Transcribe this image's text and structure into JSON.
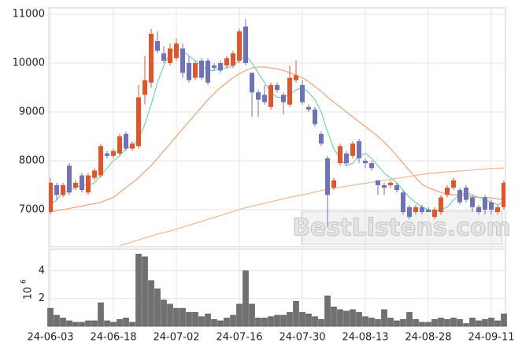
{
  "chart_data": [
    {
      "type": "candlestick",
      "categories": [
        "24-06-03",
        null,
        null,
        null,
        null,
        null,
        null,
        null,
        null,
        null,
        "24-06-18",
        null,
        null,
        null,
        null,
        null,
        null,
        null,
        null,
        null,
        "24-07-02",
        null,
        null,
        null,
        null,
        null,
        null,
        null,
        null,
        null,
        "24-07-16",
        null,
        null,
        null,
        null,
        null,
        null,
        null,
        null,
        null,
        "24-07-30",
        null,
        null,
        null,
        null,
        null,
        null,
        null,
        null,
        null,
        "24-08-13",
        null,
        null,
        null,
        null,
        null,
        null,
        null,
        null,
        null,
        "24-08-28",
        null,
        null,
        null,
        null,
        null,
        null,
        null,
        null,
        null,
        "24-09-11",
        null,
        null
      ],
      "open": [
        6950,
        7500,
        7300,
        7900,
        7450,
        7700,
        7350,
        7650,
        7700,
        8150,
        8100,
        8150,
        8550,
        8250,
        8300,
        9350,
        9600,
        10450,
        10200,
        10000,
        10100,
        10300,
        10000,
        9700,
        10050,
        10050,
        9950,
        10000,
        9950,
        9950,
        10050,
        10750,
        9800,
        9400,
        9350,
        9100,
        9550,
        9350,
        9150,
        9650,
        9550,
        9100,
        9050,
        8550,
        8050,
        7450,
        7950,
        8150,
        8100,
        8400,
        8000,
        7950,
        7600,
        7500,
        7500,
        7500,
        7350,
        7050,
        6950,
        7050,
        7000,
        6850,
        6950,
        7300,
        7450,
        7400,
        7450,
        7250,
        7050,
        7250,
        7150,
        6950,
        7050
      ],
      "high": [
        7650,
        7550,
        7550,
        7950,
        7600,
        7750,
        7750,
        7850,
        8350,
        8200,
        8250,
        8550,
        8600,
        8400,
        9550,
        10150,
        10700,
        10650,
        10350,
        10400,
        10500,
        10400,
        10150,
        10050,
        10100,
        10100,
        10000,
        10050,
        10150,
        10250,
        10700,
        10900,
        9800,
        9450,
        9550,
        9600,
        9600,
        9400,
        9950,
        10050,
        9650,
        9150,
        9100,
        8600,
        8100,
        7650,
        8350,
        8200,
        8400,
        8450,
        8050,
        8000,
        7600,
        7550,
        7600,
        7550,
        7400,
        7100,
        7100,
        7100,
        7050,
        7050,
        7300,
        7500,
        7650,
        7450,
        7500,
        7300,
        7100,
        7300,
        7200,
        7100,
        7600
      ],
      "low": [
        6900,
        7200,
        7250,
        7300,
        7400,
        7350,
        7300,
        7600,
        7650,
        8050,
        8050,
        8100,
        8200,
        8200,
        8250,
        9150,
        9500,
        10200,
        10000,
        9950,
        10050,
        9700,
        9600,
        9650,
        9650,
        9550,
        9850,
        9800,
        9900,
        9900,
        10000,
        9950,
        8900,
        8900,
        9150,
        9050,
        9400,
        8950,
        9100,
        9600,
        9150,
        9000,
        8700,
        8300,
        6650,
        7400,
        7900,
        7900,
        8050,
        7950,
        7850,
        7800,
        7300,
        7300,
        7450,
        7350,
        6900,
        6800,
        6900,
        6900,
        6950,
        6800,
        6900,
        7250,
        7400,
        7100,
        7150,
        6950,
        6900,
        6900,
        6900,
        6900,
        7000
      ],
      "close": [
        7550,
        7300,
        7500,
        7350,
        7550,
        7400,
        7700,
        7800,
        8300,
        8100,
        8200,
        8500,
        8250,
        8350,
        9300,
        9650,
        10600,
        10250,
        10050,
        10300,
        10400,
        9800,
        9650,
        10000,
        9700,
        9600,
        9900,
        9850,
        10100,
        10200,
        10650,
        10000,
        9400,
        9250,
        9200,
        9550,
        9450,
        9200,
        9700,
        9750,
        9200,
        9050,
        8750,
        8350,
        7300,
        7600,
        8300,
        7950,
        8350,
        8050,
        7950,
        7850,
        7500,
        7450,
        7550,
        7400,
        6950,
        6850,
        7050,
        6950,
        6950,
        7000,
        7250,
        7450,
        7600,
        7150,
        7200,
        7050,
        6950,
        7000,
        7000,
        7050,
        7550
      ],
      "up_color": "#e0562b",
      "down_color": "#6f72b6",
      "series": [
        {
          "color": "#7fd6b0",
          "values": [
            7100,
            7200,
            7350,
            7400,
            7450,
            7500,
            7500,
            7550,
            7700,
            7850,
            8000,
            8100,
            8250,
            8300,
            8450,
            8750,
            9150,
            9600,
            9950,
            10200,
            10300,
            10250,
            10150,
            10050,
            9950,
            9850,
            9850,
            9900,
            9900,
            9950,
            10050,
            10150,
            10000,
            9800,
            9600,
            9400,
            9300,
            9300,
            9350,
            9450,
            9500,
            9400,
            9250,
            9000,
            8600,
            8250,
            8050,
            7900,
            7950,
            8100,
            8150,
            8050,
            7900,
            7750,
            7650,
            7550,
            7400,
            7250,
            7150,
            7050,
            7000,
            6950,
            7000,
            7050,
            7200,
            7300,
            7350,
            7300,
            7250,
            7200,
            7150,
            7100,
            7150
          ]
        },
        {
          "color": "#eea882",
          "values": [
            6950,
            6980,
            7000,
            7020,
            7050,
            7070,
            7100,
            7120,
            7150,
            7200,
            7250,
            7350,
            7450,
            7550,
            7650,
            7780,
            7900,
            8050,
            8200,
            8350,
            8500,
            8650,
            8800,
            8950,
            9100,
            9250,
            9380,
            9500,
            9600,
            9700,
            9780,
            9850,
            9900,
            9920,
            9920,
            9900,
            9880,
            9850,
            9800,
            9750,
            9700,
            9620,
            9520,
            9420,
            9300,
            9200,
            9100,
            9000,
            8900,
            8800,
            8700,
            8600,
            8500,
            8380,
            8250,
            8100,
            7950,
            7800,
            7650,
            7520,
            7450,
            7400,
            7350,
            7320,
            7300,
            7300,
            7280,
            7260,
            7250,
            7250,
            7240,
            7220,
            7200
          ]
        },
        {
          "color": "#f0bc9c",
          "values": [
            null,
            null,
            null,
            null,
            null,
            null,
            null,
            null,
            null,
            null,
            null,
            6260,
            6300,
            6340,
            6380,
            6420,
            6460,
            6500,
            6530,
            6560,
            6600,
            6640,
            6680,
            6720,
            6760,
            6800,
            6840,
            6880,
            6920,
            6960,
            7000,
            7040,
            7070,
            7100,
            7130,
            7160,
            7190,
            7220,
            7250,
            7280,
            7300,
            7330,
            7360,
            7390,
            7410,
            7440,
            7460,
            7480,
            7500,
            7520,
            7540,
            7560,
            7580,
            7600,
            7620,
            7640,
            7660,
            7680,
            7700,
            7720,
            7740,
            7750,
            7760,
            7770,
            7780,
            7790,
            7800,
            7810,
            7820,
            7830,
            7840,
            7845,
            7850
          ]
        }
      ],
      "ylim": [
        6240,
        11130
      ],
      "yticks": [
        7000,
        8000,
        9000,
        10000,
        11000
      ],
      "grid": true,
      "watermark": "BestListens.com"
    },
    {
      "type": "bar",
      "values": [
        1.3,
        0.8,
        0.6,
        0.4,
        0.3,
        0.3,
        0.4,
        0.4,
        1.7,
        0.4,
        0.3,
        0.5,
        0.6,
        0.3,
        5.2,
        5.0,
        3.3,
        2.7,
        1.9,
        1.6,
        1.3,
        1.3,
        1.0,
        1.0,
        0.7,
        0.9,
        0.5,
        0.4,
        0.6,
        0.8,
        1.6,
        4.0,
        1.6,
        0.6,
        0.6,
        0.7,
        0.8,
        0.8,
        1.0,
        1.8,
        1.0,
        0.9,
        0.7,
        0.5,
        2.2,
        1.4,
        1.2,
        1.1,
        1.2,
        1.0,
        0.7,
        0.6,
        0.5,
        1.2,
        0.6,
        0.4,
        0.5,
        1.0,
        0.5,
        0.3,
        0.3,
        0.5,
        0.6,
        0.5,
        0.6,
        0.5,
        0.2,
        0.6,
        0.4,
        0.5,
        0.6,
        0.4,
        0.9
      ],
      "color": "#707070",
      "ylim": [
        0,
        5.56
      ],
      "yticks": [
        2,
        4
      ],
      "grid": true,
      "y_label": "10",
      "y_label_exponent": "6"
    }
  ]
}
